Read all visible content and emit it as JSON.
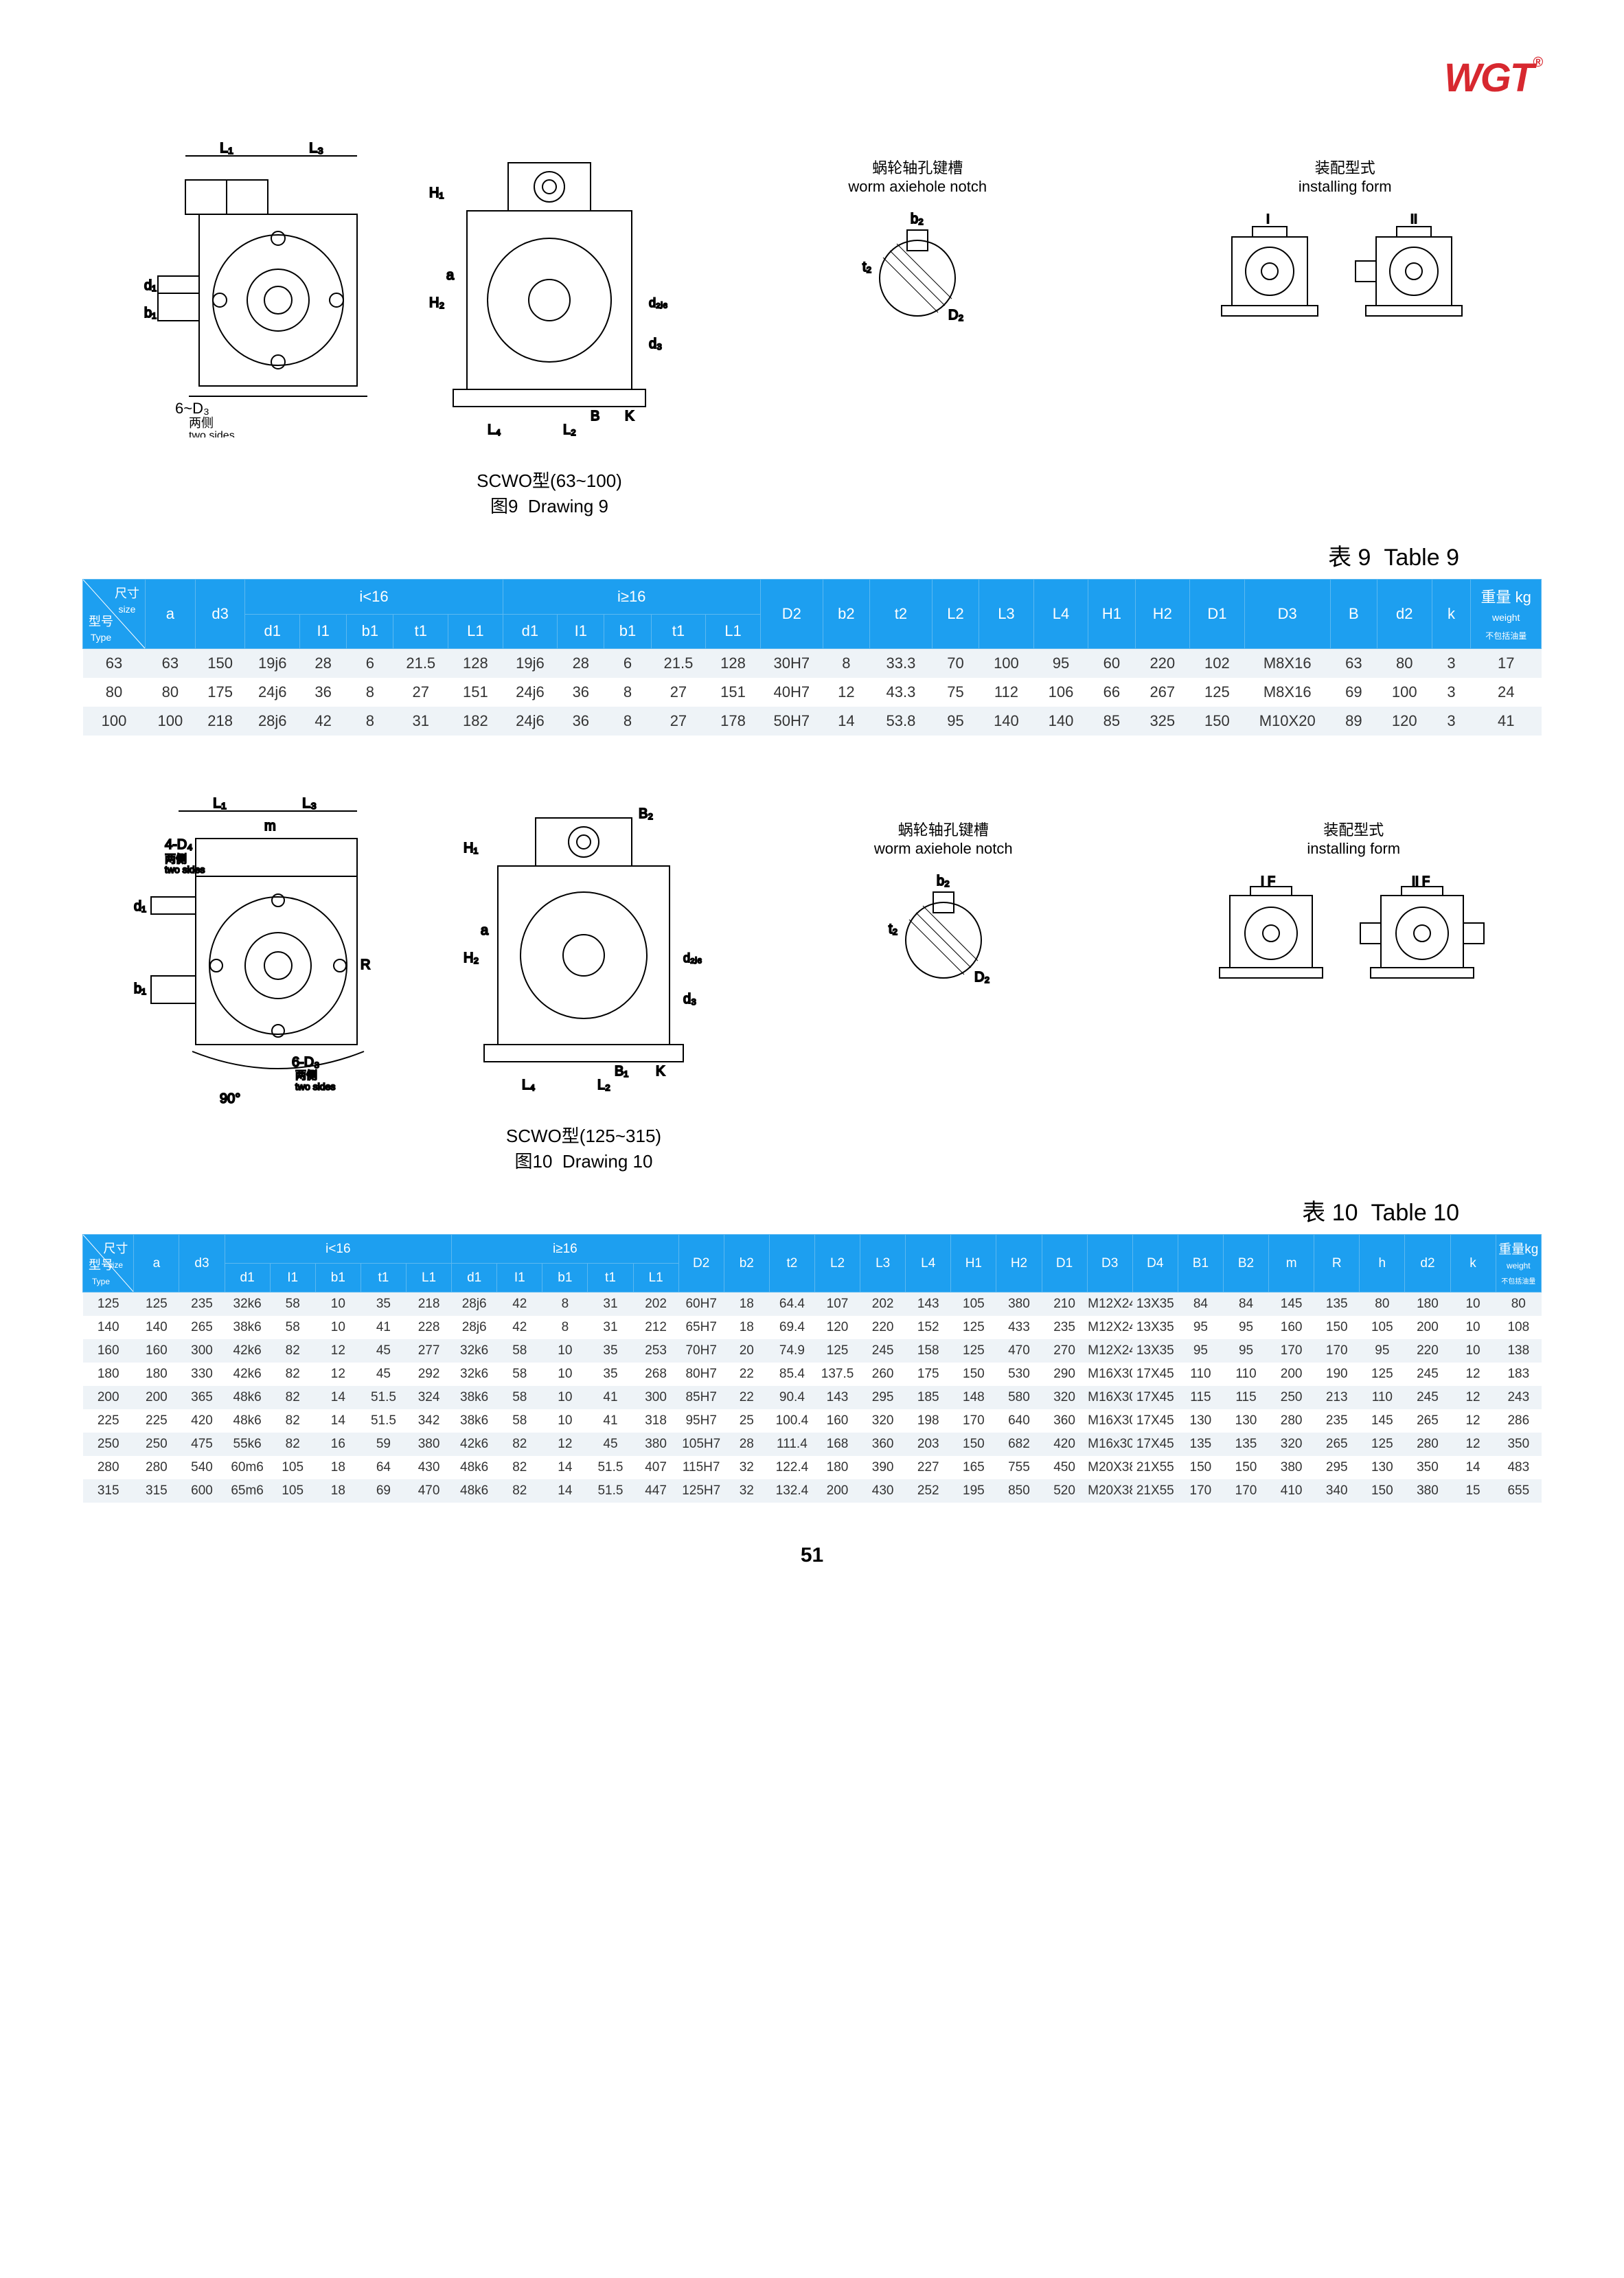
{
  "logo": {
    "text": "WGT",
    "reg": "®",
    "color": "#d7282f"
  },
  "figure9": {
    "title_cn": "SCWO型(63~100)",
    "caption_cn": "图9",
    "caption_en": "Drawing 9",
    "notch_cn": "蜗轮轴孔键槽",
    "notch_en": "worm axiehole notch",
    "install_cn": "装配型式",
    "install_en": "installing form",
    "both_sides_cn": "两侧",
    "both_sides_en": "two sides",
    "label_6D3": "6~D₃",
    "dims_left": [
      "L₁",
      "L₃",
      "d₁",
      "b₁",
      "L"
    ],
    "dims_right": [
      "H₁",
      "H₂",
      "a",
      "d₂ⱼ₆",
      "d₃",
      "B",
      "K",
      "L₄",
      "L₂"
    ],
    "notch_dims": [
      "b₂",
      "t₂",
      "D₂"
    ]
  },
  "table9": {
    "title_cn": "表 9",
    "title_en": "Table 9",
    "header_bg": "#1d9ff0",
    "header_fg": "#ffffff",
    "corner_size_cn": "尺寸",
    "corner_size_en": "size",
    "corner_type_cn": "型号",
    "corner_type_en": "Type",
    "group_lt16": "i<16",
    "group_ge16": "i≥16",
    "weight_cn": "重量",
    "weight_unit": "kg",
    "weight_en": "weight",
    "weight_note": "不包括油量",
    "cols_top": [
      "a",
      "d3"
    ],
    "cols_sub": [
      "d1",
      "I1",
      "b1",
      "t1",
      "L1",
      "d1",
      "I1",
      "b1",
      "t1",
      "L1"
    ],
    "cols_right": [
      "D2",
      "b2",
      "t2",
      "L2",
      "L3",
      "L4",
      "H1",
      "H2",
      "D1",
      "D3",
      "B",
      "d2",
      "k"
    ],
    "rows": [
      [
        "63",
        "63",
        "150",
        "19j6",
        "28",
        "6",
        "21.5",
        "128",
        "19j6",
        "28",
        "6",
        "21.5",
        "128",
        "30H7",
        "8",
        "33.3",
        "70",
        "100",
        "95",
        "60",
        "220",
        "102",
        "M8X16",
        "63",
        "80",
        "3",
        "17"
      ],
      [
        "80",
        "80",
        "175",
        "24j6",
        "36",
        "8",
        "27",
        "151",
        "24j6",
        "36",
        "8",
        "27",
        "151",
        "40H7",
        "12",
        "43.3",
        "75",
        "112",
        "106",
        "66",
        "267",
        "125",
        "M8X16",
        "69",
        "100",
        "3",
        "24"
      ],
      [
        "100",
        "100",
        "218",
        "28j6",
        "42",
        "8",
        "31",
        "182",
        "24j6",
        "36",
        "8",
        "27",
        "178",
        "50H7",
        "14",
        "53.8",
        "95",
        "140",
        "140",
        "85",
        "325",
        "150",
        "M10X20",
        "89",
        "120",
        "3",
        "41"
      ]
    ]
  },
  "figure10": {
    "title_cn": "SCWO型(125~315)",
    "caption_cn": "图10",
    "caption_en": "Drawing 10",
    "notch_cn": "蜗轮轴孔键槽",
    "notch_en": "worm axiehole notch",
    "install_cn": "装配型式",
    "install_en": "installing form",
    "both_sides_cn": "两侧",
    "both_sides_en": "two sides",
    "label_4D4": "4-D₄",
    "label_6D3": "6-D₃",
    "angle": "90°",
    "dims_left": [
      "L₁",
      "L₃",
      "m",
      "d₁",
      "b₁",
      "R"
    ],
    "dims_right": [
      "B₂",
      "H₁",
      "H₂",
      "a",
      "d₂ⱼ₆",
      "d₃",
      "B₁",
      "K",
      "L₄",
      "L₂"
    ],
    "notch_dims": [
      "b₂",
      "t₂",
      "D₂"
    ],
    "form_labels": [
      "I F",
      "II F"
    ]
  },
  "table10": {
    "title_cn": "表 10",
    "title_en": "Table 10",
    "header_bg": "#1d9ff0",
    "header_fg": "#ffffff",
    "corner_size_cn": "尺寸",
    "corner_size_en": "size",
    "corner_type_cn": "型号",
    "corner_type_en": "Type",
    "group_lt16": "i<16",
    "group_ge16": "i≥16",
    "weight_cn": "重量",
    "weight_unit": "kg",
    "weight_en": "weight",
    "weight_note": "不包括油量",
    "cols_top": [
      "a",
      "d3"
    ],
    "cols_sub": [
      "d1",
      "I1",
      "b1",
      "t1",
      "L1",
      "d1",
      "I1",
      "b1",
      "t1",
      "L1"
    ],
    "cols_right": [
      "D2",
      "b2",
      "t2",
      "L2",
      "L3",
      "L4",
      "H1",
      "H2",
      "D1",
      "D3",
      "D4",
      "B1",
      "B2",
      "m",
      "R",
      "h",
      "d2",
      "k"
    ],
    "rows": [
      [
        "125",
        "125",
        "235",
        "32k6",
        "58",
        "10",
        "35",
        "218",
        "28j6",
        "42",
        "8",
        "31",
        "202",
        "60H7",
        "18",
        "64.4",
        "107",
        "202",
        "143",
        "105",
        "380",
        "210",
        "M12X24",
        "13X35",
        "84",
        "84",
        "145",
        "135",
        "80",
        "180",
        "10",
        "80"
      ],
      [
        "140",
        "140",
        "265",
        "38k6",
        "58",
        "10",
        "41",
        "228",
        "28j6",
        "42",
        "8",
        "31",
        "212",
        "65H7",
        "18",
        "69.4",
        "120",
        "220",
        "152",
        "125",
        "433",
        "235",
        "M12X24",
        "13X35",
        "95",
        "95",
        "160",
        "150",
        "105",
        "200",
        "10",
        "108"
      ],
      [
        "160",
        "160",
        "300",
        "42k6",
        "82",
        "12",
        "45",
        "277",
        "32k6",
        "58",
        "10",
        "35",
        "253",
        "70H7",
        "20",
        "74.9",
        "125",
        "245",
        "158",
        "125",
        "470",
        "270",
        "M12X24",
        "13X35",
        "95",
        "95",
        "170",
        "170",
        "95",
        "220",
        "10",
        "138"
      ],
      [
        "180",
        "180",
        "330",
        "42k6",
        "82",
        "12",
        "45",
        "292",
        "32k6",
        "58",
        "10",
        "35",
        "268",
        "80H7",
        "22",
        "85.4",
        "137.5",
        "260",
        "175",
        "150",
        "530",
        "290",
        "M16X30",
        "17X45",
        "110",
        "110",
        "200",
        "190",
        "125",
        "245",
        "12",
        "183"
      ],
      [
        "200",
        "200",
        "365",
        "48k6",
        "82",
        "14",
        "51.5",
        "324",
        "38k6",
        "58",
        "10",
        "41",
        "300",
        "85H7",
        "22",
        "90.4",
        "143",
        "295",
        "185",
        "148",
        "580",
        "320",
        "M16X30",
        "17X45",
        "115",
        "115",
        "250",
        "213",
        "110",
        "245",
        "12",
        "243"
      ],
      [
        "225",
        "225",
        "420",
        "48k6",
        "82",
        "14",
        "51.5",
        "342",
        "38k6",
        "58",
        "10",
        "41",
        "318",
        "95H7",
        "25",
        "100.4",
        "160",
        "320",
        "198",
        "170",
        "640",
        "360",
        "M16X30",
        "17X45",
        "130",
        "130",
        "280",
        "235",
        "145",
        "265",
        "12",
        "286"
      ],
      [
        "250",
        "250",
        "475",
        "55k6",
        "82",
        "16",
        "59",
        "380",
        "42k6",
        "82",
        "12",
        "45",
        "380",
        "105H7",
        "28",
        "111.4",
        "168",
        "360",
        "203",
        "150",
        "682",
        "420",
        "M16x30",
        "17X45",
        "135",
        "135",
        "320",
        "265",
        "125",
        "280",
        "12",
        "350"
      ],
      [
        "280",
        "280",
        "540",
        "60m6",
        "105",
        "18",
        "64",
        "430",
        "48k6",
        "82",
        "14",
        "51.5",
        "407",
        "115H7",
        "32",
        "122.4",
        "180",
        "390",
        "227",
        "165",
        "755",
        "450",
        "M20X38",
        "21X55",
        "150",
        "150",
        "380",
        "295",
        "130",
        "350",
        "14",
        "483"
      ],
      [
        "315",
        "315",
        "600",
        "65m6",
        "105",
        "18",
        "69",
        "470",
        "48k6",
        "82",
        "14",
        "51.5",
        "447",
        "125H7",
        "32",
        "132.4",
        "200",
        "430",
        "252",
        "195",
        "850",
        "520",
        "M20X38",
        "21X55",
        "170",
        "170",
        "410",
        "340",
        "150",
        "380",
        "15",
        "655"
      ]
    ]
  },
  "page_number": "51"
}
